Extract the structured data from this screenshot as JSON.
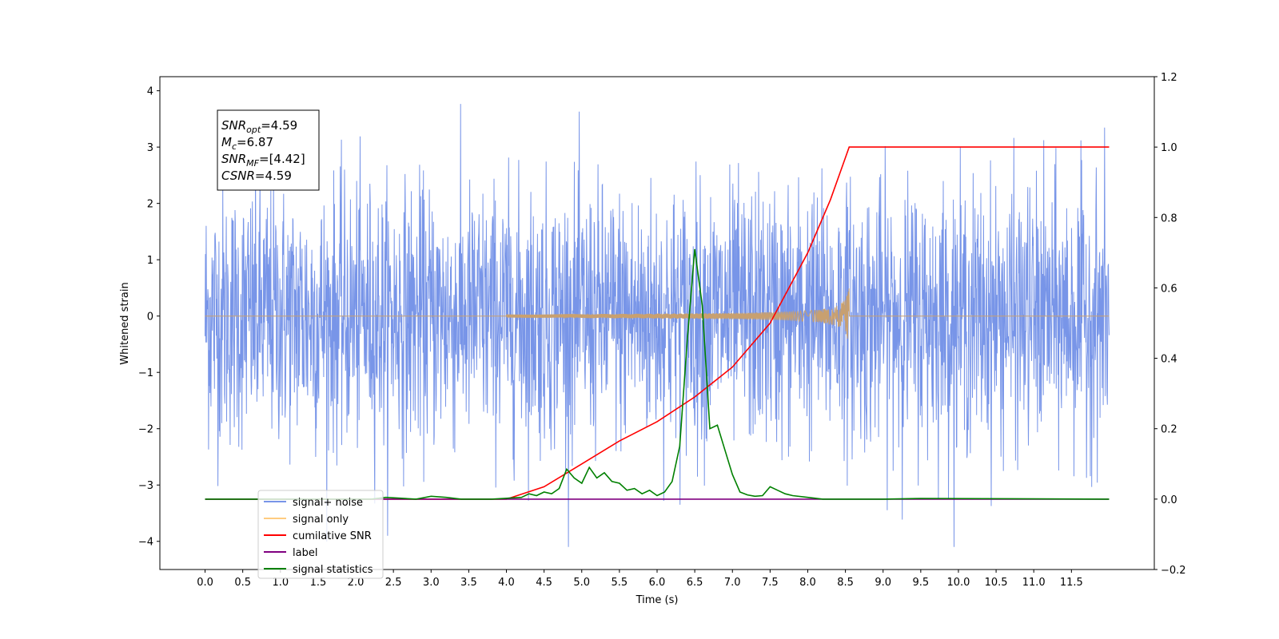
{
  "chart_data": {
    "type": "line",
    "xlabel": "Time (s)",
    "ylabel": "Whitened strain",
    "xlim": [
      -0.6,
      12.6
    ],
    "ylim": [
      -4.5,
      4.25
    ],
    "y2lim": [
      -0.2,
      1.2
    ],
    "x_ticks": [
      "0.0",
      "0.5",
      "1.0",
      "1.5",
      "2.0",
      "2.5",
      "3.0",
      "3.5",
      "4.0",
      "4.5",
      "5.0",
      "5.5",
      "6.0",
      "6.5",
      "7.0",
      "7.5",
      "8.0",
      "8.5",
      "9.0",
      "9.5",
      "10.0",
      "10.5",
      "11.0",
      "11.5"
    ],
    "y_ticks": [
      "4",
      "3",
      "2",
      "1",
      "0",
      "−1",
      "−2",
      "−3",
      "−4"
    ],
    "y2_ticks": [
      "1.2",
      "1.0",
      "0.8",
      "0.6",
      "0.4",
      "0.2",
      "0.0",
      "−0.2"
    ],
    "grid": false,
    "legend_placement": "lower-left",
    "stats_box": [
      {
        "name": "SNR",
        "sub": "opt",
        "value": "=4.59"
      },
      {
        "name": "M",
        "sub": "c",
        "value": "=6.87"
      },
      {
        "name": "SNR",
        "sub": "MF",
        "value": "=[4.42]"
      },
      {
        "name": "CSNR",
        "sub": "",
        "value": "=4.59"
      }
    ],
    "series": [
      {
        "name": "signal+ noise",
        "color": "#7895e8",
        "axis": "left",
        "description_values": {
          "x_start": 0.0,
          "x_end": 12.0,
          "amplitude_range": [
            -4.1,
            3.85
          ]
        }
      },
      {
        "name": "signal only",
        "color": "#ffcc80",
        "axis": "left",
        "chirp": {
          "x_start": 0.0,
          "x_end": 12.0,
          "peak_time": 8.55,
          "peak_amplitude": 0.62
        }
      },
      {
        "name": "cumilative SNR",
        "color": "#ff0000",
        "axis": "right",
        "x": [
          0.0,
          4.0,
          4.5,
          5.0,
          5.5,
          6.0,
          6.5,
          7.0,
          7.5,
          8.0,
          8.3,
          8.5,
          8.55,
          12.0
        ],
        "values": [
          0.0,
          0.0,
          0.035,
          0.1,
          0.165,
          0.22,
          0.29,
          0.375,
          0.5,
          0.7,
          0.85,
          0.97,
          1.0,
          1.0
        ]
      },
      {
        "name": "label",
        "color": "#800080",
        "axis": "right",
        "x": [
          0.0,
          12.0
        ],
        "values": [
          0.0,
          0.0
        ]
      },
      {
        "name": "signal statistics",
        "color": "#008000",
        "axis": "right",
        "x": [
          0.0,
          2.2,
          2.4,
          2.8,
          3.0,
          3.2,
          3.4,
          3.8,
          4.2,
          4.3,
          4.4,
          4.5,
          4.6,
          4.7,
          4.8,
          4.9,
          5.0,
          5.1,
          5.2,
          5.3,
          5.4,
          5.5,
          5.6,
          5.7,
          5.8,
          5.9,
          6.0,
          6.1,
          6.2,
          6.3,
          6.4,
          6.5,
          6.6,
          6.7,
          6.8,
          6.9,
          7.0,
          7.1,
          7.2,
          7.3,
          7.4,
          7.5,
          7.6,
          7.7,
          7.8,
          8.0,
          8.2,
          9.0,
          9.5,
          12.0
        ],
        "values": [
          0.0,
          0.0,
          0.005,
          0.0,
          0.008,
          0.005,
          0.0,
          0.0,
          0.005,
          0.015,
          0.01,
          0.02,
          0.015,
          0.03,
          0.085,
          0.06,
          0.045,
          0.09,
          0.06,
          0.075,
          0.05,
          0.045,
          0.025,
          0.03,
          0.015,
          0.025,
          0.01,
          0.02,
          0.05,
          0.15,
          0.45,
          0.71,
          0.55,
          0.2,
          0.21,
          0.14,
          0.07,
          0.02,
          0.012,
          0.008,
          0.01,
          0.035,
          0.025,
          0.015,
          0.01,
          0.005,
          0.0,
          0.0,
          0.002,
          0.0
        ]
      }
    ]
  }
}
